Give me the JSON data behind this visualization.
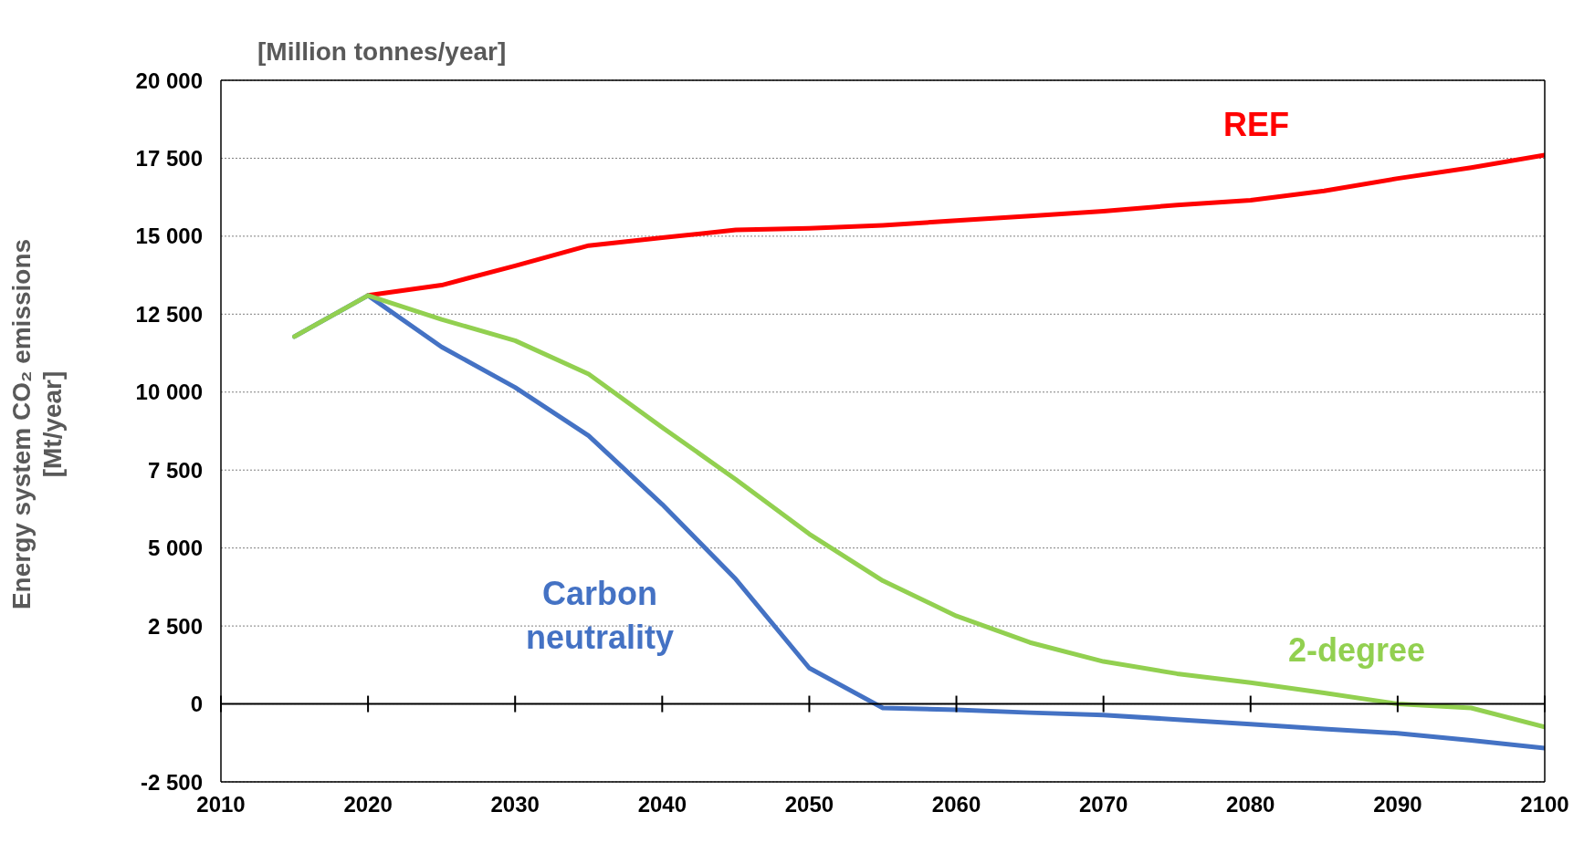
{
  "chart_data": {
    "type": "line",
    "ylabel": "Energy system CO₂ emissions\n[Mt/year]",
    "annotations": [
      "[Million tonnes/year]"
    ],
    "x": [
      2015,
      2020,
      2025,
      2030,
      2035,
      2040,
      2045,
      2050,
      2055,
      2060,
      2065,
      2070,
      2075,
      2080,
      2085,
      2090,
      2095,
      2100
    ],
    "series": [
      {
        "name": "REF",
        "color": "#ff0000",
        "values": [
          null,
          13100,
          13430,
          14050,
          14700,
          14950,
          15200,
          15250,
          15350,
          15500,
          15650,
          15800,
          16000,
          16150,
          16450,
          16850,
          17200,
          17600
        ]
      },
      {
        "name": "Carbon neutrality",
        "color": "#4472c4",
        "values": [
          11780,
          13100,
          11450,
          10150,
          8600,
          6400,
          4000,
          1150,
          -130,
          -190,
          -280,
          -360,
          -500,
          -650,
          -800,
          -940,
          -1170,
          -1420
        ]
      },
      {
        "name": "2-degree",
        "color": "#92d050",
        "values": [
          11780,
          13100,
          12330,
          11650,
          10580,
          8870,
          7200,
          5450,
          3950,
          2820,
          1970,
          1360,
          970,
          680,
          350,
          0,
          -130,
          -740
        ]
      }
    ],
    "xlim": [
      2010,
      2100
    ],
    "xticks": [
      2010,
      2020,
      2030,
      2040,
      2050,
      2060,
      2070,
      2080,
      2090,
      2100
    ],
    "ylim": [
      -2500,
      20000
    ],
    "yticks": [
      {
        "value": -2500,
        "label": "-2 500"
      },
      0,
      {
        "value": 2500,
        "label": "2 500"
      },
      {
        "value": 5000,
        "label": "5 000"
      },
      {
        "value": 7500,
        "label": "7 500"
      },
      {
        "value": 10000,
        "label": "10 000"
      },
      {
        "value": 12500,
        "label": "12 500"
      },
      {
        "value": 15000,
        "label": "15 000"
      },
      {
        "value": 17500,
        "label": "17 500"
      },
      {
        "value": 20000,
        "label": "20 000"
      }
    ],
    "grid": "y",
    "marker": "none",
    "line_style": "solid"
  }
}
